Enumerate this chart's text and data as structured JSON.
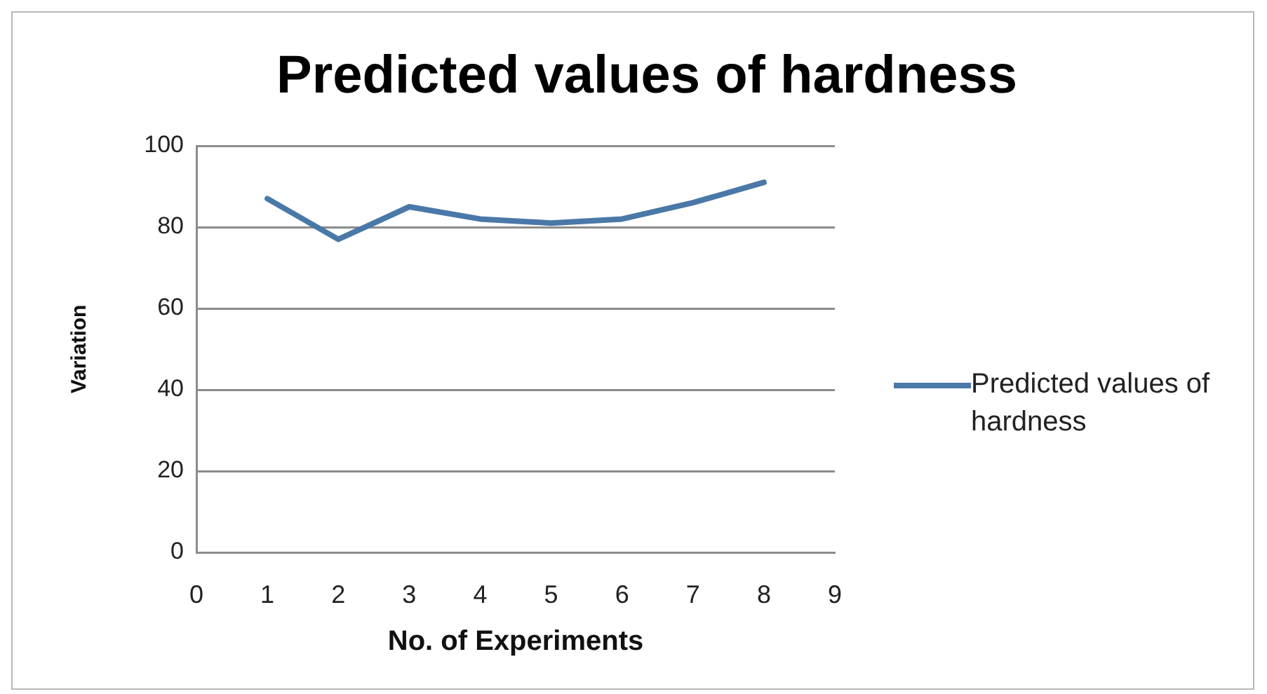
{
  "chart_data": {
    "type": "line",
    "title": "Predicted values of hardness",
    "xlabel": "No. of Experiments",
    "ylabel": "Variation",
    "x": [
      1,
      2,
      3,
      4,
      5,
      6,
      7,
      8
    ],
    "series": [
      {
        "name": "Predicted values of hardness",
        "color": "#4a78a8",
        "values": [
          87,
          77,
          85,
          82,
          81,
          82,
          86,
          91
        ]
      }
    ],
    "xlim": [
      0,
      9
    ],
    "xticks": [
      0,
      1,
      2,
      3,
      4,
      5,
      6,
      7,
      8,
      9
    ],
    "ylim": [
      0,
      100
    ],
    "yticks": [
      0,
      20,
      40,
      60,
      80,
      100
    ],
    "grid": "y",
    "legend": "right",
    "marker": "none",
    "line_style": "solid"
  }
}
